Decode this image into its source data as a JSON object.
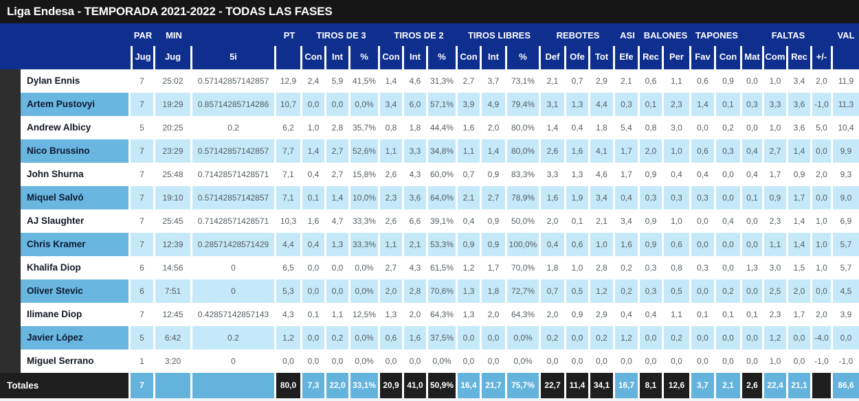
{
  "title": "Liga Endesa - TEMPORADA 2021-2022 - TODAS LAS FASES",
  "colors": {
    "title_bar": "#161616",
    "header_navy": "#0f2f8e",
    "gutter_dark": "#2e2e2e",
    "row_light_blue": "#c6e9f9",
    "row_name_blue": "#69b6e0",
    "totals_dark": "#1e1e1e",
    "totals_blue": "#64b3dc",
    "white": "#ffffff"
  },
  "table": {
    "groups": [
      {
        "label": "PAR",
        "span": 1
      },
      {
        "label": "MIN",
        "span": 1
      },
      {
        "label": "",
        "span": 1
      },
      {
        "label": "PT",
        "span": 1
      },
      {
        "label": "TIROS DE 3",
        "span": 3
      },
      {
        "label": "TIROS DE 2",
        "span": 3
      },
      {
        "label": "TIROS LIBRES",
        "span": 3
      },
      {
        "label": "REBOTES",
        "span": 3
      },
      {
        "label": "ASI",
        "span": 1
      },
      {
        "label": "BALONES",
        "span": 2
      },
      {
        "label": "TAPONES",
        "span": 2
      },
      {
        "label": "",
        "span": 1
      },
      {
        "label": "FALTAS",
        "span": 2
      },
      {
        "label": "",
        "span": 1
      },
      {
        "label": "VAL",
        "span": 1
      }
    ],
    "subheaders": [
      "Jug",
      "Jug",
      "5i",
      "",
      "Con",
      "Int",
      "%",
      "Con",
      "Int",
      "%",
      "Con",
      "Int",
      "%",
      "Def",
      "Ofe",
      "Tot",
      "Efe",
      "Rec",
      "Per",
      "Fav",
      "Con",
      "Mat",
      "Com",
      "Rec",
      "+/-",
      ""
    ],
    "rows": [
      {
        "name": "Dylan Ennis",
        "values": [
          "7",
          "25:02",
          "0.57142857142857",
          "12,9",
          "2,4",
          "5,9",
          "41,5%",
          "1,4",
          "4,6",
          "31,3%",
          "2,7",
          "3,7",
          "73,1%",
          "2,1",
          "0,7",
          "2,9",
          "2,1",
          "0,6",
          "1,1",
          "0,6",
          "0,9",
          "0,0",
          "1,0",
          "3,4",
          "2,0",
          "11,9"
        ]
      },
      {
        "name": "Artem Pustovyi",
        "values": [
          "7",
          "19:29",
          "0.85714285714286",
          "10,7",
          "0,0",
          "0,0",
          "0,0%",
          "3,4",
          "6,0",
          "57,1%",
          "3,9",
          "4,9",
          "79,4%",
          "3,1",
          "1,3",
          "4,4",
          "0,3",
          "0,1",
          "2,3",
          "1,4",
          "0,1",
          "0,3",
          "3,3",
          "3,6",
          "-1,0",
          "11,3"
        ]
      },
      {
        "name": "Andrew Albicy",
        "values": [
          "5",
          "20:25",
          "0.2",
          "6,2",
          "1,0",
          "2,8",
          "35,7%",
          "0,8",
          "1,8",
          "44,4%",
          "1,6",
          "2,0",
          "80,0%",
          "1,4",
          "0,4",
          "1,8",
          "5,4",
          "0,8",
          "3,0",
          "0,0",
          "0,2",
          "0,0",
          "1,0",
          "3,6",
          "5,0",
          "10,4"
        ]
      },
      {
        "name": "Nico Brussino",
        "values": [
          "7",
          "23:29",
          "0.57142857142857",
          "7,7",
          "1,4",
          "2,7",
          "52,6%",
          "1,1",
          "3,3",
          "34,8%",
          "1,1",
          "1,4",
          "80,0%",
          "2,6",
          "1,6",
          "4,1",
          "1,7",
          "2,0",
          "1,0",
          "0,6",
          "0,3",
          "0,4",
          "2,7",
          "1,4",
          "0,0",
          "9,9"
        ]
      },
      {
        "name": "John Shurna",
        "values": [
          "7",
          "25:48",
          "0.71428571428571",
          "7,1",
          "0,4",
          "2,7",
          "15,8%",
          "2,6",
          "4,3",
          "60,0%",
          "0,7",
          "0,9",
          "83,3%",
          "3,3",
          "1,3",
          "4,6",
          "1,7",
          "0,9",
          "0,4",
          "0,4",
          "0,0",
          "0,4",
          "1,7",
          "0,9",
          "2,0",
          "9,3"
        ]
      },
      {
        "name": "Miquel Salvó",
        "values": [
          "7",
          "19:10",
          "0.57142857142857",
          "7,1",
          "0,1",
          "1,4",
          "10,0%",
          "2,3",
          "3,6",
          "64,0%",
          "2,1",
          "2,7",
          "78,9%",
          "1,6",
          "1,9",
          "3,4",
          "0,4",
          "0,3",
          "0,3",
          "0,3",
          "0,0",
          "0,1",
          "0,9",
          "1,7",
          "0,0",
          "9,0"
        ]
      },
      {
        "name": "AJ Slaughter",
        "values": [
          "7",
          "25:45",
          "0.71428571428571",
          "10,3",
          "1,6",
          "4,7",
          "33,3%",
          "2,6",
          "6,6",
          "39,1%",
          "0,4",
          "0,9",
          "50,0%",
          "2,0",
          "0,1",
          "2,1",
          "3,4",
          "0,9",
          "1,0",
          "0,0",
          "0,4",
          "0,0",
          "2,3",
          "1,4",
          "1,0",
          "6,9"
        ]
      },
      {
        "name": "Chris Kramer",
        "values": [
          "7",
          "12:39",
          "0.28571428571429",
          "4,4",
          "0,4",
          "1,3",
          "33,3%",
          "1,1",
          "2,1",
          "53,3%",
          "0,9",
          "0,9",
          "100,0%",
          "0,4",
          "0,6",
          "1,0",
          "1,6",
          "0,9",
          "0,6",
          "0,0",
          "0,0",
          "0,0",
          "1,1",
          "1,4",
          "1,0",
          "5,7"
        ]
      },
      {
        "name": "Khalifa Diop",
        "values": [
          "6",
          "14:56",
          "0",
          "6,5",
          "0,0",
          "0,0",
          "0,0%",
          "2,7",
          "4,3",
          "61,5%",
          "1,2",
          "1,7",
          "70,0%",
          "1,8",
          "1,0",
          "2,8",
          "0,2",
          "0,3",
          "0,8",
          "0,3",
          "0,0",
          "1,3",
          "3,0",
          "1,5",
          "1,0",
          "5,7"
        ]
      },
      {
        "name": "Oliver Stevic",
        "values": [
          "6",
          "7:51",
          "0",
          "5,3",
          "0,0",
          "0,0",
          "0,0%",
          "2,0",
          "2,8",
          "70,6%",
          "1,3",
          "1,8",
          "72,7%",
          "0,7",
          "0,5",
          "1,2",
          "0,2",
          "0,3",
          "0,5",
          "0,0",
          "0,2",
          "0,0",
          "2,5",
          "2,0",
          "0,0",
          "4,5"
        ]
      },
      {
        "name": "Ilimane Diop",
        "values": [
          "7",
          "12:45",
          "0.42857142857143",
          "4,3",
          "0,1",
          "1,1",
          "12,5%",
          "1,3",
          "2,0",
          "64,3%",
          "1,3",
          "2,0",
          "64,3%",
          "2,0",
          "0,9",
          "2,9",
          "0,4",
          "0,4",
          "1,1",
          "0,1",
          "0,1",
          "0,1",
          "2,3",
          "1,7",
          "2,0",
          "3,9"
        ]
      },
      {
        "name": "Javier López",
        "values": [
          "5",
          "6:42",
          "0.2",
          "1,2",
          "0,0",
          "0,2",
          "0,0%",
          "0,6",
          "1,6",
          "37,5%",
          "0,0",
          "0,0",
          "0,0%",
          "0,2",
          "0,0",
          "0,2",
          "1,2",
          "0,0",
          "0,2",
          "0,0",
          "0,0",
          "0,0",
          "1,2",
          "0,0",
          "-4,0",
          "0,0"
        ]
      },
      {
        "name": "Miguel Serrano",
        "values": [
          "1",
          "3:20",
          "0",
          "0,0",
          "0,0",
          "0,0",
          "0,0%",
          "0,0",
          "0,0",
          "0,0%",
          "0,0",
          "0,0",
          "0,0%",
          "0,0",
          "0,0",
          "0,0",
          "0,0",
          "0,0",
          "0,0",
          "0,0",
          "0,0",
          "0,0",
          "1,0",
          "0,0",
          "-1,0",
          "-1,0"
        ]
      }
    ],
    "totals": {
      "label": "Totales",
      "values": [
        "7",
        "",
        "",
        "80,0",
        "7,3",
        "22,0",
        "33,1%",
        "20,9",
        "41,0",
        "50,9%",
        "16,4",
        "21,7",
        "75,7%",
        "22,7",
        "11,4",
        "34,1",
        "16,7",
        "8,1",
        "12,6",
        "3,7",
        "2,1",
        "2,6",
        "22,4",
        "21,1",
        "",
        "86,6"
      ],
      "dark": [
        false,
        false,
        false,
        true,
        false,
        false,
        false,
        true,
        true,
        true,
        false,
        false,
        false,
        true,
        true,
        true,
        false,
        true,
        true,
        false,
        false,
        true,
        false,
        false,
        true,
        false
      ]
    }
  }
}
